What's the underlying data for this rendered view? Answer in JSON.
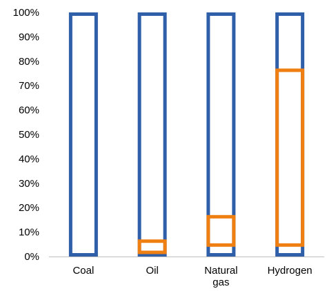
{
  "chart_data": {
    "type": "bar",
    "categories": [
      "Coal",
      "Oil",
      "Natural gas",
      "Hydrogen"
    ],
    "category_label_lines": [
      [
        "Coal"
      ],
      [
        "Oil"
      ],
      [
        "Natural",
        "gas"
      ],
      [
        "Hydrogen"
      ]
    ],
    "ylim": [
      0,
      100
    ],
    "y_ticks": [
      "0%",
      "10%",
      "20%",
      "30%",
      "40%",
      "50%",
      "60%",
      "70%",
      "80%",
      "90%",
      "100%"
    ],
    "grid": false,
    "legend": "none",
    "series": [
      {
        "color": "#2e5fa8",
        "ranges": [
          [
            0,
            100
          ],
          [
            0,
            100
          ],
          [
            0,
            100
          ],
          [
            0,
            100
          ]
        ]
      },
      {
        "color": "#f07f11",
        "ranges": [
          null,
          [
            1,
            7
          ],
          [
            4,
            17
          ],
          [
            4,
            77
          ]
        ]
      }
    ],
    "colors": {
      "axis": "#bfbfbf",
      "text": "#000000"
    }
  }
}
